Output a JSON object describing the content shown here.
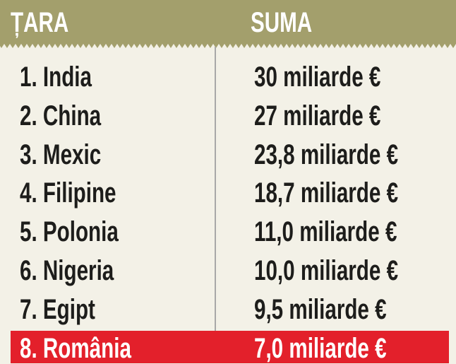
{
  "table": {
    "header": [
      "ȚARA",
      "SUMA"
    ],
    "rows": [
      [
        "1. India",
        "30 miliarde €"
      ],
      [
        "2. China",
        "27 miliarde €"
      ],
      [
        "3. Mexic",
        "23,8 miliarde €"
      ],
      [
        "4. Filipine",
        "18,7 miliarde €"
      ],
      [
        "5. Polonia",
        "11,0 miliarde €"
      ],
      [
        "6. Nigeria",
        "10,0 miliarde €"
      ],
      [
        "7. Egipt",
        "9,5 miliarde €"
      ],
      [
        "8. România",
        "7,0 miliarde €"
      ]
    ],
    "highlight_row": 7
  }
}
